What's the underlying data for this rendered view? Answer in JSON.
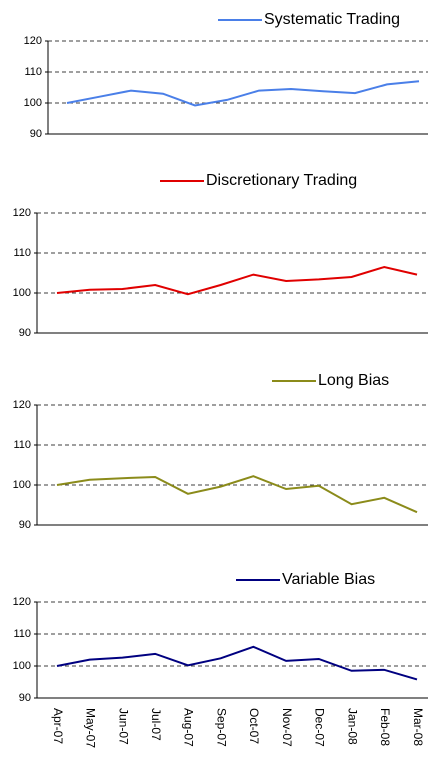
{
  "chart_data": [
    {
      "type": "line",
      "series": [
        {
          "name": "Systematic Trading",
          "color": "#4a7fe8",
          "values": [
            100,
            102,
            104,
            103,
            99.2,
            101,
            104,
            104.5,
            103.8,
            103.2,
            106,
            107
          ]
        }
      ],
      "ylim": [
        90,
        120
      ],
      "yticks": [
        90,
        100,
        110,
        120
      ],
      "grid": true
    },
    {
      "type": "line",
      "series": [
        {
          "name": "Discretionary Trading",
          "color": "#e00000",
          "values": [
            100,
            100.8,
            101,
            102,
            99.7,
            102,
            104.6,
            103,
            103.4,
            104,
            106.5,
            104.6
          ]
        }
      ],
      "ylim": [
        90,
        120
      ],
      "yticks": [
        90,
        100,
        110,
        120
      ],
      "grid": true
    },
    {
      "type": "line",
      "series": [
        {
          "name": "Long Bias",
          "color": "#8b8b1a",
          "values": [
            100,
            101.3,
            101.7,
            102,
            97.8,
            99.6,
            102.2,
            99,
            99.8,
            95.2,
            96.8,
            93.2
          ]
        }
      ],
      "ylim": [
        90,
        120
      ],
      "yticks": [
        90,
        100,
        110,
        120
      ],
      "grid": true
    },
    {
      "type": "line",
      "categories": [
        "Apr-07",
        "May-07",
        "Jun-07",
        "Jul-07",
        "Aug-07",
        "Sep-07",
        "Oct-07",
        "Nov-07",
        "Dec-07",
        "Jan-08",
        "Feb-08",
        "Mar-08"
      ],
      "series": [
        {
          "name": "Variable Bias",
          "color": "#000080",
          "values": [
            100,
            102,
            102.6,
            103.8,
            100.2,
            102.4,
            106,
            101.6,
            102.2,
            98.5,
            98.8,
            95.8
          ]
        }
      ],
      "ylim": [
        90,
        120
      ],
      "yticks": [
        90,
        100,
        110,
        120
      ],
      "grid": true
    }
  ]
}
